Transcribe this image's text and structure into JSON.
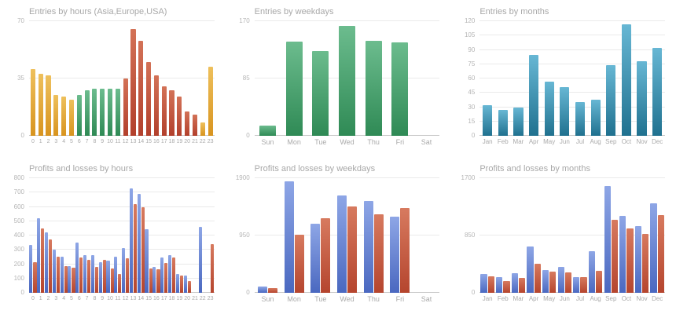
{
  "palette": {
    "orange": {
      "light": "#eec05c",
      "base": "#d8941f"
    },
    "green": {
      "light": "#6cbc8e",
      "base": "#2f8a55"
    },
    "red": {
      "light": "#d37257",
      "base": "#b2402c"
    },
    "teal": {
      "light": "#67b7d4",
      "base": "#20718f"
    },
    "blue": {
      "light": "#8ea6e6",
      "base": "#4a68c0"
    },
    "loss_red": {
      "light": "#d77a5f",
      "base": "#b5452e"
    }
  },
  "chart_data": [
    {
      "type": "bar",
      "title": "Entries by hours (Asia,Europe,USA)",
      "xlabel": "",
      "ylabel": "",
      "ylim": [
        0,
        70
      ],
      "y_ticks": [
        0,
        35,
        70
      ],
      "grid": "horizontal",
      "legend": "none",
      "categories": [
        "0",
        "1",
        "2",
        "3",
        "4",
        "5",
        "6",
        "7",
        "8",
        "9",
        "10",
        "11",
        "12",
        "13",
        "14",
        "15",
        "16",
        "17",
        "18",
        "19",
        "20",
        "21",
        "22",
        "23"
      ],
      "values": [
        41,
        38,
        37,
        25,
        24,
        22,
        25,
        28,
        29,
        29,
        29,
        29,
        35,
        65,
        58,
        45,
        37,
        30,
        28,
        24,
        15,
        13,
        8,
        42
      ],
      "bar_colors": [
        "orange",
        "orange",
        "orange",
        "orange",
        "orange",
        "orange",
        "green",
        "green",
        "green",
        "green",
        "green",
        "green",
        "red",
        "red",
        "red",
        "red",
        "red",
        "red",
        "red",
        "red",
        "red",
        "red",
        "orange",
        "orange"
      ]
    },
    {
      "type": "bar",
      "title": "Entries by weekdays",
      "xlabel": "",
      "ylabel": "",
      "ylim": [
        0,
        170
      ],
      "y_ticks": [
        0,
        85,
        170
      ],
      "grid": "horizontal",
      "legend": "none",
      "categories": [
        "Sun",
        "Mon",
        "Tue",
        "Wed",
        "Thu",
        "Fri",
        "Sat"
      ],
      "values": [
        15,
        140,
        126,
        163,
        141,
        139,
        0
      ],
      "color": "green"
    },
    {
      "type": "bar",
      "title": "Entries by months",
      "xlabel": "",
      "ylabel": "",
      "ylim": [
        0,
        120
      ],
      "y_ticks": [
        0,
        15,
        30,
        45,
        60,
        75,
        90,
        105,
        120
      ],
      "grid": "horizontal",
      "legend": "none",
      "categories": [
        "Jan",
        "Feb",
        "Mar",
        "Apr",
        "May",
        "Jun",
        "Jul",
        "Aug",
        "Sep",
        "Oct",
        "Nov",
        "Dec"
      ],
      "values": [
        32,
        27,
        30,
        85,
        57,
        51,
        35,
        38,
        74,
        117,
        78,
        92
      ],
      "color": "teal"
    },
    {
      "type": "bar",
      "title": "Profits and losses by hours",
      "xlabel": "",
      "ylabel": "",
      "ylim": [
        0,
        800
      ],
      "y_ticks": [
        0,
        100,
        200,
        300,
        400,
        500,
        600,
        700,
        800
      ],
      "grid": "horizontal",
      "legend": "none",
      "categories": [
        "0",
        "1",
        "2",
        "3",
        "4",
        "5",
        "6",
        "7",
        "8",
        "9",
        "10",
        "11",
        "12",
        "13",
        "14",
        "15",
        "16",
        "17",
        "18",
        "19",
        "20",
        "21",
        "22",
        "23"
      ],
      "series": [
        {
          "name": "profits",
          "color": "blue",
          "values": [
            335,
            520,
            420,
            300,
            250,
            185,
            350,
            265,
            265,
            215,
            225,
            250,
            315,
            730,
            690,
            445,
            180,
            245,
            265,
            130,
            120,
            0,
            460,
            0
          ]
        },
        {
          "name": "losses",
          "color": "loss_red",
          "values": [
            215,
            450,
            370,
            250,
            185,
            175,
            245,
            230,
            180,
            230,
            170,
            130,
            240,
            620,
            600,
            170,
            165,
            210,
            245,
            120,
            85,
            0,
            0,
            340
          ]
        }
      ]
    },
    {
      "type": "bar",
      "title": "Profits and losses by weekdays",
      "xlabel": "",
      "ylabel": "",
      "ylim": [
        0,
        1900
      ],
      "y_ticks": [
        0,
        950,
        1900
      ],
      "grid": "horizontal",
      "legend": "none",
      "categories": [
        "Sun",
        "Mon",
        "Tue",
        "Wed",
        "Thu",
        "Fri",
        "Sat"
      ],
      "series": [
        {
          "name": "profits",
          "color": "blue",
          "values": [
            100,
            1850,
            1150,
            1620,
            1520,
            1260,
            0
          ]
        },
        {
          "name": "losses",
          "color": "loss_red",
          "values": [
            75,
            960,
            1230,
            1430,
            1300,
            1400,
            0
          ]
        }
      ]
    },
    {
      "type": "bar",
      "title": "Profits and losses by months",
      "xlabel": "",
      "ylabel": "",
      "ylim": [
        0,
        1700
      ],
      "y_ticks": [
        0,
        850,
        1700
      ],
      "grid": "horizontal",
      "legend": "none",
      "categories": [
        "Jan",
        "Feb",
        "Mar",
        "Apr",
        "May",
        "Jun",
        "Jul",
        "Aug",
        "Sep",
        "Oct",
        "Nov",
        "Dec"
      ],
      "series": [
        {
          "name": "profits",
          "color": "blue",
          "values": [
            280,
            230,
            290,
            690,
            340,
            380,
            230,
            620,
            1580,
            1140,
            990,
            1330
          ]
        },
        {
          "name": "losses",
          "color": "loss_red",
          "values": [
            250,
            180,
            220,
            430,
            310,
            300,
            230,
            330,
            1080,
            960,
            870,
            1150
          ]
        }
      ]
    }
  ]
}
